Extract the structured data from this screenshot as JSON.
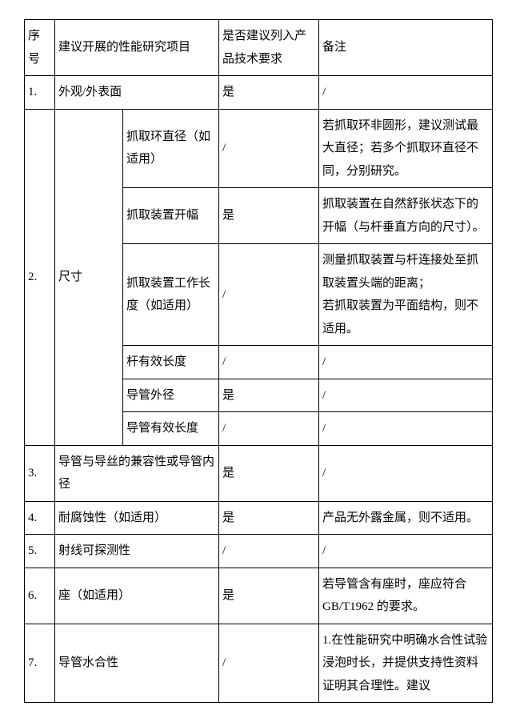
{
  "headers": {
    "seq": "序号",
    "item": "建议开展的性能研究项目",
    "listed": "是否建议列入产品技术要求",
    "note": "备注"
  },
  "rows": {
    "r1": {
      "seq": "1.",
      "item": "外观/外表面",
      "listed": "是",
      "note": "/"
    },
    "r2": {
      "seq": "2.",
      "group": "尺寸",
      "sub1": {
        "item": "抓取环直径（如适用）",
        "listed": "/",
        "note": "若抓取环非圆形，建议测试最大直径；若多个抓取环直径不同，分别研究。"
      },
      "sub2": {
        "item": "抓取装置开幅",
        "listed": "是",
        "note": "抓取装置在自然舒张状态下的开幅（与杆垂直方向的尺寸）。"
      },
      "sub3": {
        "item": "抓取装置工作长度（如适用）",
        "listed": "/",
        "note": "测量抓取装置与杆连接处至抓取装置头端的距离；\n若抓取装置为平面结构，则不适用。"
      },
      "sub4": {
        "item": "杆有效长度",
        "listed": "/",
        "note": "/"
      },
      "sub5": {
        "item": "导管外径",
        "listed": "是",
        "note": "/"
      },
      "sub6": {
        "item": "导管有效长度",
        "listed": "/",
        "note": "/"
      }
    },
    "r3": {
      "seq": "3.",
      "item": "导管与导丝的兼容性或导管内径",
      "listed": "是",
      "note": "/"
    },
    "r4": {
      "seq": "4.",
      "item": "耐腐蚀性（如适用）",
      "listed": "是",
      "note": "产品无外露金属，则不适用。"
    },
    "r5": {
      "seq": "5.",
      "item": "射线可探测性",
      "listed": "/",
      "note": "/"
    },
    "r6": {
      "seq": "6.",
      "item": "座（如适用）",
      "listed": "是",
      "note": "若导管含有座时，座应符合GB/T1962 的要求。"
    },
    "r7": {
      "seq": "7.",
      "item": "导管水合性",
      "listed": "/",
      "note": "1.在性能研究中明确水合性试验浸泡时长，并提供支持性资料证明其合理性。建议"
    }
  }
}
